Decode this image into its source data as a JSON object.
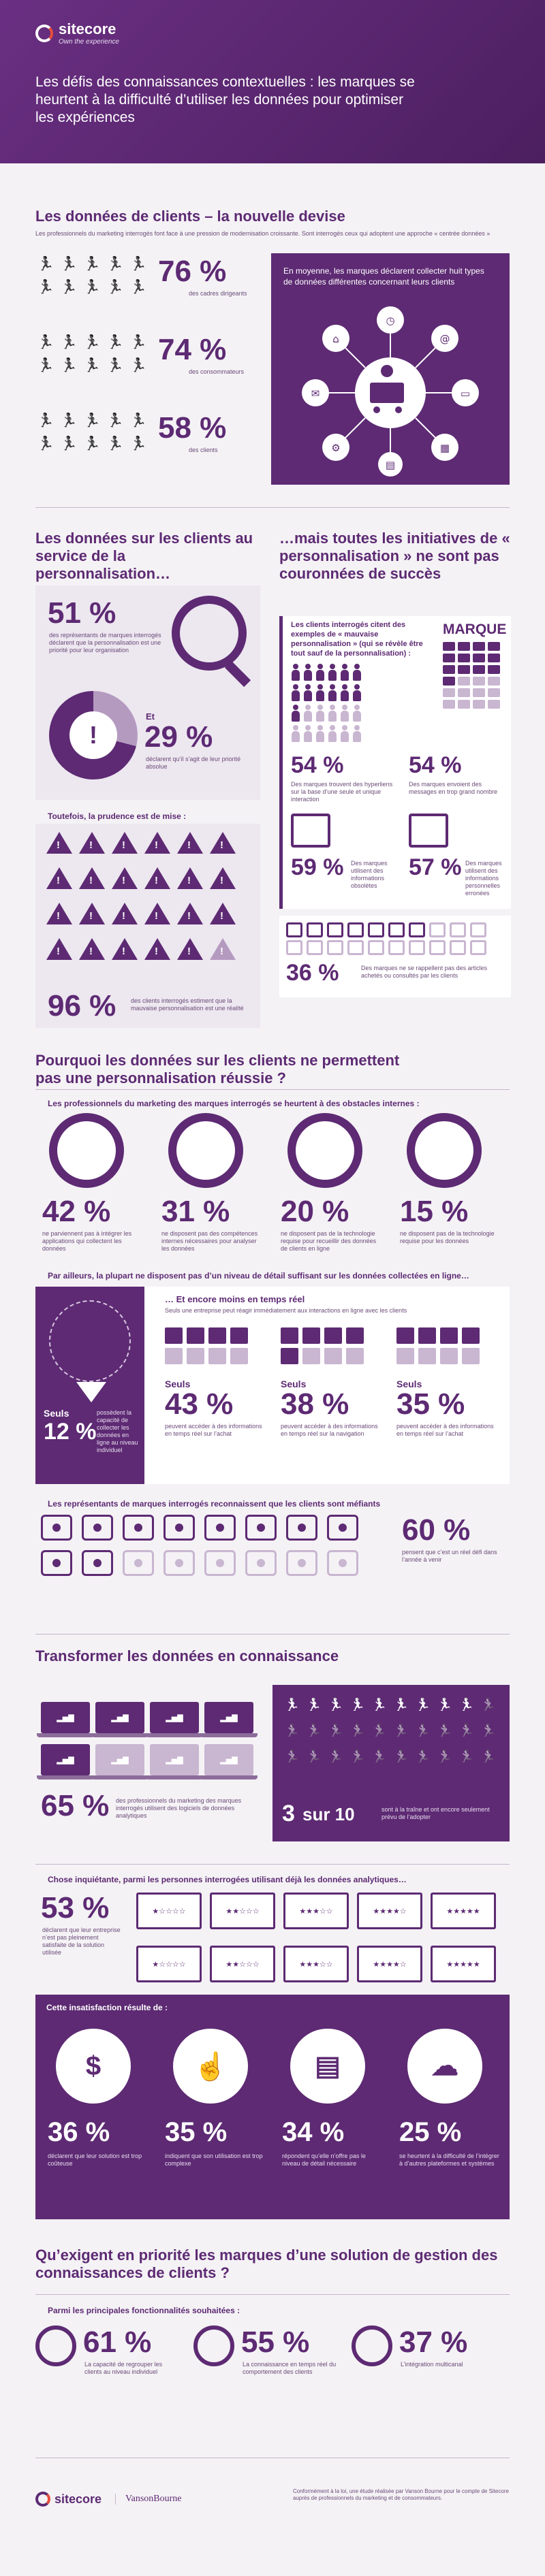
{
  "header": {
    "brand": "sitecore",
    "tagline": "Own the experience",
    "title": "Les défis des connaissances contextuelles : les marques se heurtent à la difficulté d’utiliser les données pour optimiser les expériences"
  },
  "s1": {
    "title": "Les données de clients – la nouvelle devise",
    "intro": "Les professionnels du marketing interrogés font face à une pression de modernisation croissante. Sont interrogés ceux qui adoptent une approche « centrée données »",
    "stats": [
      {
        "value": "76 %",
        "label": "des cadres dirigeants",
        "icon": "runner-icon"
      },
      {
        "value": "74 %",
        "label": "des consommateurs",
        "icon": "runner-icon"
      },
      {
        "value": "58 %",
        "label": "des clients",
        "icon": "runner-icon"
      }
    ],
    "avg_text": "En moyenne, les marques déclarent collecter huit types de données différentes concernant leurs clients"
  },
  "s2": {
    "title_left": "Les données sur les clients au service de la personnalisation…",
    "title_right": "…mais toutes les initiatives de « personnalisation » ne sont pas couronnées de succès",
    "p51": "51 %",
    "p51_text": "des représentants de marques interrogés déclarent que la personnalisation est une priorité pour leur organisation",
    "et": "Et",
    "p29": "29 %",
    "p29_text": "déclarent qu’il s’agit de leur priorité absolue",
    "caution": "Toutefois, la prudence est de mise :",
    "p96": "96 %",
    "p96_text": "des clients interrogés estiment que la mauvaise personnalisation est une réalité",
    "examples_title": "Les clients interrogés citent des exemples de « mauvaise personnalisation » (qui se révèle être tout sauf de la personnalisation) :",
    "marque": "MARQUE",
    "ex": [
      {
        "value": "54 %",
        "label": "Des marques trouvent des hyperliens sur la base d’une seule et unique interaction"
      },
      {
        "value": "54 %",
        "label": "Des marques envoient des messages en trop grand nombre"
      },
      {
        "value": "59 %",
        "label": "Des marques utilisent des informations obsolètes"
      },
      {
        "value": "57 %",
        "label": "Des marques utilisent des informations personnelles erronées"
      },
      {
        "value": "36 %",
        "label": "Des marques ne se rappellent pas des articles achetés ou consultés par les clients"
      }
    ]
  },
  "s3": {
    "title": "Pourquoi les données sur les clients ne permettent pas une personnalisation réussie ?",
    "sub": "Les professionnels du marketing des marques interrogés se heurtent à des obstacles internes :",
    "items": [
      {
        "value": "42 %",
        "label": "ne parviennent pas à intégrer les applications qui collectent les données"
      },
      {
        "value": "31 %",
        "label": "ne disposent pas des compétences internes nécessaires pour analyser les données"
      },
      {
        "value": "20 %",
        "label": "ne disposent pas de la technologie requise pour recueillir des données de clients en ligne"
      },
      {
        "value": "15 %",
        "label": "ne disposent pas de la technologie requise pour les données"
      }
    ],
    "note": "Par ailleurs, la plupart ne disposent pas d’un niveau de détail suffisant sur les données collectées en ligne…",
    "realtime_title": "… Et encore moins en temps réel",
    "realtime_sub": "Seuls une entreprise peut réagir immédiatement aux interactions en ligne avec les clients",
    "seuls": "Seuls",
    "p12": "12 %",
    "p12_text": "possèdent la capacité de collecter les données en ligne au niveau individuel",
    "rt": [
      {
        "value": "43 %",
        "label": "peuvent accéder à des informations en temps réel sur l’achat"
      },
      {
        "value": "38 %",
        "label": "peuvent accéder à des informations en temps réel sur la navigation"
      },
      {
        "value": "35 %",
        "label": "peuvent accéder à des informations en temps réel sur l’achat"
      }
    ],
    "distrust": "Les représentants de marques interrogés reconnaissent que les clients sont méfiants",
    "p60": "60 %",
    "p60_text": "pensent que c’est un réel défi dans l’année à venir"
  },
  "s4": {
    "title": "Transformer les données en connaissance",
    "p65": "65 %",
    "p65_text": "des professionnels du marketing des marques interrogés utilisent des logiciels de données analytiques",
    "three": "3",
    "sur10": "sur 10",
    "sur10_text": "sont à la traîne et ont encore seulement prévu de l’adopter",
    "worry": "Chose inquiétante, parmi les personnes interrogées utilisant déjà les données analytiques…",
    "p53": "53 %",
    "p53_text": "déclarent que leur entreprise n’est pas pleinement satisfaite de la solution utilisée",
    "result": "Cette insatisfaction résulte de :",
    "res": [
      {
        "value": "36 %",
        "label": "déclarent que leur solution est trop coûteuse"
      },
      {
        "value": "35 %",
        "label": "indiquent que son utilisation est trop complexe"
      },
      {
        "value": "34 %",
        "label": "répondent qu’elle n’offre pas le niveau de détail nécessaire"
      },
      {
        "value": "25 %",
        "label": "se heurtent à la difficulté de l’intégrer à d’autres plateformes et systèmes"
      }
    ]
  },
  "s5": {
    "title": "Qu’exigent en priorité les marques d’une solution de gestion des connaissances de clients ?",
    "sub": "Parmi les principales fonctionnalités souhaitées :",
    "items": [
      {
        "value": "61 %",
        "label": "La capacité de regrouper les clients au niveau individuel"
      },
      {
        "value": "55 %",
        "label": "La connaissance en temps réel du comportement des clients"
      },
      {
        "value": "37 %",
        "label": "L’intégration multicanal"
      }
    ]
  },
  "footer": {
    "brand": "sitecore",
    "partner": "VansonBourne",
    "note": "Conformément à la loi, une étude réalisée par Vanson Bourne pour le compte de Sitecore auprès de professionnels du marketing et de consommateurs."
  }
}
